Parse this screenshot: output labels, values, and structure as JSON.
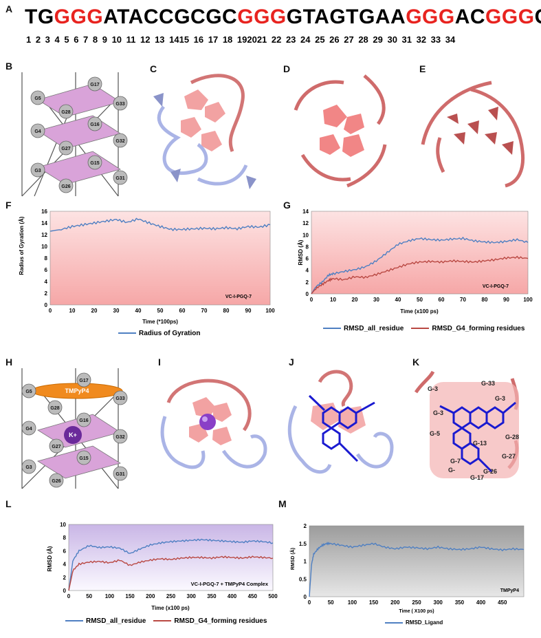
{
  "panels": {
    "A": "A",
    "B": "B",
    "C": "C",
    "D": "D",
    "E": "E",
    "F": "F",
    "G": "G",
    "H": "H",
    "I": "I",
    "J": "J",
    "K": "K",
    "L": "L",
    "M": "M"
  },
  "sequence": {
    "segments": [
      {
        "text": "TG",
        "red": false
      },
      {
        "text": "GGG",
        "red": true
      },
      {
        "text": "ATACCGCGC",
        "red": false
      },
      {
        "text": "GGG",
        "red": true
      },
      {
        "text": "GTAGTGAA",
        "red": false
      },
      {
        "text": "GGG",
        "red": true
      },
      {
        "text": "AC",
        "red": false
      },
      {
        "text": "GGG",
        "red": true
      },
      {
        "text": "C",
        "red": false
      }
    ],
    "numbers": "1 2 3 4 5 6 7 8 9 10 11 12 13 1415 16 17 18 192021 22 23 24 25 26 27 28 29 30 31 32 33 34"
  },
  "colors": {
    "red": "#e8231f",
    "blue": "#4e7fc2",
    "darkred": "#b94842",
    "pink_top": "#f4a9a9",
    "purple_top": "#c9b6e6"
  },
  "quadruplex_B": [
    "G17",
    "G5",
    "G28",
    "G33",
    "G4",
    "G16",
    "G32",
    "G27",
    "G15",
    "G3",
    "G26",
    "G31"
  ],
  "quadruplex_H": {
    "labels": [
      "G17",
      "G5",
      "G33",
      "G28",
      "G4",
      "G16",
      "G32",
      "G27",
      "G15",
      "G3",
      "G26",
      "G31"
    ],
    "ligand": "TMPyP4",
    "ion": "K+"
  },
  "panel_K": {
    "labels": [
      "G-3",
      "G-33",
      "G-3",
      "G-3",
      "G-5",
      "G-28",
      "G-13",
      "G-27",
      "G-26",
      "G-7",
      "G-17",
      "G-"
    ]
  },
  "chart_data": [
    {
      "id": "F",
      "type": "line",
      "ylabel": "Radius of Gyration (Å)",
      "xlabel": "Time (*100ps)",
      "annotation": "VC-I-PGQ-7",
      "xlim": [
        0,
        100
      ],
      "ylim": [
        0,
        16
      ],
      "xticks": [
        0,
        10,
        20,
        30,
        40,
        50,
        60,
        70,
        80,
        90,
        100
      ],
      "yticks": [
        0,
        2,
        4,
        6,
        8,
        10,
        12,
        14,
        16
      ],
      "series": [
        {
          "name": "Radius of Gyration",
          "color": "#4e7fc2",
          "x": [
            0,
            5,
            10,
            15,
            20,
            25,
            30,
            35,
            40,
            45,
            50,
            55,
            60,
            65,
            70,
            75,
            80,
            85,
            90,
            95,
            100
          ],
          "values": [
            12.6,
            12.9,
            13.4,
            13.7,
            14.0,
            14.3,
            14.6,
            14.1,
            14.7,
            14.0,
            13.4,
            12.9,
            12.9,
            13.0,
            13.1,
            13.0,
            13.2,
            13.0,
            13.4,
            13.3,
            13.7
          ]
        }
      ]
    },
    {
      "id": "G",
      "type": "line",
      "ylabel": "RMSD (Å)",
      "xlabel": "Time (x100 ps)",
      "annotation": "VC-I-PGQ-7",
      "xlim": [
        0,
        100
      ],
      "ylim": [
        0,
        14
      ],
      "xticks": [
        0,
        10,
        20,
        30,
        40,
        50,
        60,
        70,
        80,
        90,
        100
      ],
      "yticks": [
        0,
        2,
        4,
        6,
        8,
        10,
        12,
        14
      ],
      "series": [
        {
          "name": "RMSD_all_residue",
          "color": "#4e7fc2",
          "x": [
            0,
            2,
            5,
            8,
            10,
            15,
            20,
            25,
            30,
            35,
            40,
            45,
            50,
            55,
            60,
            65,
            70,
            75,
            80,
            85,
            90,
            95,
            100
          ],
          "values": [
            0,
            1.2,
            2.0,
            3.2,
            3.4,
            3.8,
            4.1,
            4.6,
            5.6,
            7.0,
            8.4,
            9.0,
            9.4,
            9.2,
            9.1,
            9.3,
            9.4,
            9.0,
            8.8,
            8.7,
            8.9,
            9.2,
            8.7
          ]
        },
        {
          "name": "RMSD_G4_forming residues",
          "color": "#b94842",
          "x": [
            0,
            2,
            5,
            8,
            10,
            15,
            20,
            25,
            30,
            35,
            40,
            45,
            50,
            55,
            60,
            65,
            70,
            75,
            80,
            85,
            90,
            95,
            100
          ],
          "values": [
            0,
            0.9,
            1.6,
            2.3,
            2.6,
            2.4,
            2.9,
            2.8,
            3.3,
            3.9,
            4.5,
            5.1,
            5.4,
            5.5,
            5.4,
            5.6,
            5.5,
            5.4,
            5.6,
            5.8,
            6.1,
            6.2,
            6.0
          ]
        }
      ]
    },
    {
      "id": "L",
      "type": "line",
      "ylabel": "RMSD (Å)",
      "xlabel": "Time (x100 ps)",
      "annotation": "VC-I-PGQ-7 + TMPyP4 Complex",
      "xlim": [
        0,
        500
      ],
      "ylim": [
        0,
        10
      ],
      "xticks": [
        0,
        50,
        100,
        150,
        200,
        250,
        300,
        350,
        400,
        450,
        500
      ],
      "yticks": [
        0,
        2,
        4,
        6,
        8,
        10
      ],
      "series": [
        {
          "name": "RMSD_all_residue",
          "color": "#4e7fc2",
          "x": [
            0,
            10,
            25,
            50,
            75,
            100,
            125,
            150,
            175,
            200,
            225,
            250,
            275,
            300,
            325,
            350,
            375,
            400,
            425,
            450,
            475,
            500
          ],
          "values": [
            0,
            4.5,
            6.0,
            6.8,
            6.5,
            6.6,
            6.4,
            5.6,
            6.3,
            6.9,
            7.2,
            7.4,
            7.5,
            7.6,
            7.7,
            7.6,
            7.5,
            7.4,
            7.3,
            7.5,
            7.4,
            7.2
          ]
        },
        {
          "name": "RMSD_G4_forming residues",
          "color": "#b94842",
          "x": [
            0,
            10,
            25,
            50,
            75,
            100,
            125,
            150,
            175,
            200,
            225,
            250,
            275,
            300,
            325,
            350,
            375,
            400,
            425,
            450,
            475,
            500
          ],
          "values": [
            0,
            3.0,
            4.0,
            4.3,
            4.4,
            4.2,
            4.6,
            3.8,
            4.3,
            4.6,
            4.8,
            4.7,
            4.9,
            5.0,
            5.0,
            4.9,
            5.1,
            5.0,
            4.9,
            5.1,
            5.0,
            4.9
          ]
        }
      ]
    },
    {
      "id": "M",
      "type": "line",
      "ylabel": "RMSD (Å)",
      "xlabel": "Time ( X100 ps)",
      "annotation": "TMPyP4",
      "xlim": [
        0,
        500
      ],
      "ylim": [
        0,
        2
      ],
      "xticks": [
        0,
        50,
        100,
        150,
        200,
        250,
        300,
        350,
        400,
        450
      ],
      "yticks": [
        0,
        0.5,
        1,
        1.5,
        2
      ],
      "series": [
        {
          "name": "RMSD_Ligand",
          "color": "#4e7fc2",
          "x": [
            0,
            5,
            10,
            20,
            30,
            40,
            50,
            75,
            100,
            125,
            150,
            175,
            200,
            225,
            250,
            275,
            300,
            325,
            350,
            375,
            400,
            425,
            450,
            475,
            500
          ],
          "values": [
            0,
            0.9,
            1.2,
            1.35,
            1.45,
            1.5,
            1.5,
            1.45,
            1.4,
            1.45,
            1.5,
            1.4,
            1.35,
            1.4,
            1.38,
            1.35,
            1.4,
            1.35,
            1.33,
            1.35,
            1.4,
            1.35,
            1.32,
            1.35,
            1.33
          ]
        }
      ]
    }
  ]
}
